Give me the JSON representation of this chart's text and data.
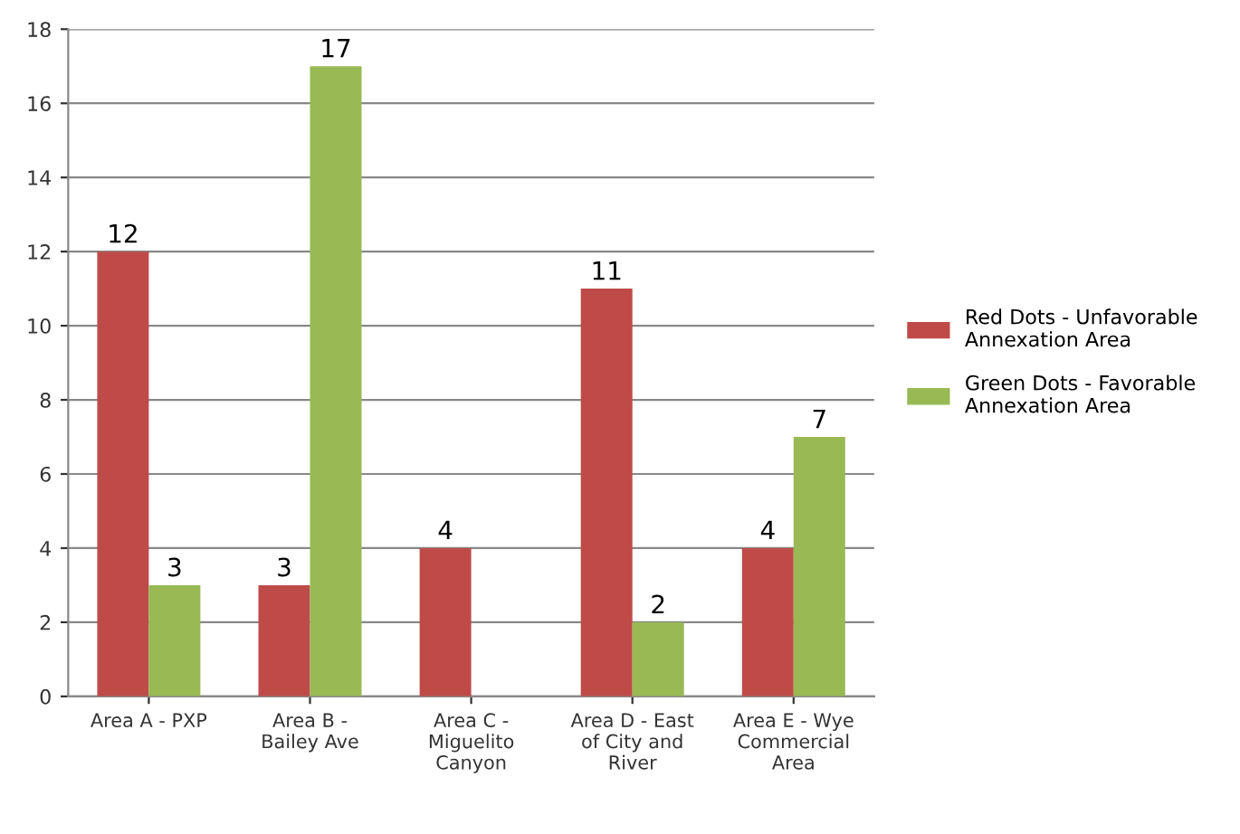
{
  "chart_data": {
    "type": "bar",
    "categories": [
      "Area A - PXP",
      "Area B -\nBailey Ave",
      "Area C -\nMiguelito\nCanyon",
      "Area D - East\nof City and\nRiver",
      "Area E - Wye\nCommercial\nArea"
    ],
    "series": [
      {
        "name": "Red Dots - Unfavorable\nAnnexation Area",
        "color": "#be4b48",
        "values": [
          12,
          3,
          4,
          11,
          4
        ]
      },
      {
        "name": "Green Dots - Favorable\nAnnexation Area",
        "color": "#98b954",
        "values": [
          3,
          17,
          null,
          2,
          7
        ]
      }
    ],
    "ylim": [
      0,
      18
    ],
    "yticks": [
      0,
      2,
      4,
      6,
      8,
      10,
      12,
      14,
      16,
      18
    ],
    "grid": "y",
    "legend": "right",
    "data_labels": true
  }
}
